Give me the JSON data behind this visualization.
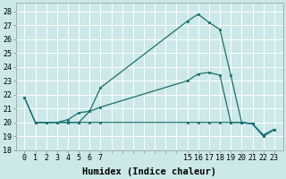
{
  "bg_color": "#cce8e8",
  "grid_color": "#ffffff",
  "line_color": "#1a7070",
  "marker_color": "#1a7070",
  "xlabel": "Humidex (Indice chaleur)",
  "xlabel_fontsize": 7.5,
  "tick_fontsize": 6.0,
  "xlim": [
    -0.8,
    23.8
  ],
  "ylim": [
    18,
    28.6
  ],
  "yticks": [
    18,
    19,
    20,
    21,
    22,
    23,
    24,
    25,
    26,
    27,
    28
  ],
  "xtick_positions": [
    0,
    1,
    2,
    3,
    4,
    5,
    6,
    7,
    15,
    16,
    17,
    18,
    19,
    20,
    21,
    22,
    23
  ],
  "xtick_labels": [
    "0",
    "1",
    "2",
    "3",
    "4",
    "5",
    "6",
    "7",
    "15",
    "16",
    "17",
    "18",
    "19",
    "20",
    "21",
    "22",
    "23"
  ],
  "line1_x": [
    0,
    1,
    2,
    3,
    4,
    5,
    6,
    7,
    15,
    16,
    17,
    18,
    19,
    20,
    21,
    22,
    23
  ],
  "line1_y": [
    21.8,
    20.0,
    20.0,
    20.0,
    20.2,
    20.7,
    20.8,
    22.5,
    27.3,
    27.8,
    27.2,
    26.7,
    23.4,
    20.0,
    19.9,
    19.0,
    19.5
  ],
  "line2_x": [
    0,
    1,
    2,
    3,
    4,
    5,
    6,
    7,
    15,
    16,
    17,
    18,
    19,
    20,
    21,
    22,
    23
  ],
  "line2_y": [
    21.8,
    20.0,
    20.0,
    20.0,
    20.0,
    20.0,
    20.8,
    21.1,
    23.0,
    23.5,
    23.6,
    23.4,
    20.0,
    20.0,
    19.9,
    19.0,
    19.5
  ],
  "line3_x": [
    1,
    2,
    3,
    4,
    5,
    6,
    7,
    15,
    16,
    17,
    18,
    19,
    20,
    21,
    22,
    23
  ],
  "line3_y": [
    20.0,
    20.0,
    20.0,
    20.0,
    20.0,
    20.0,
    20.0,
    20.0,
    20.0,
    20.0,
    20.0,
    20.0,
    20.0,
    19.9,
    19.1,
    19.5
  ],
  "minor_xticks": [
    8,
    9,
    10,
    11,
    12,
    13,
    14
  ]
}
